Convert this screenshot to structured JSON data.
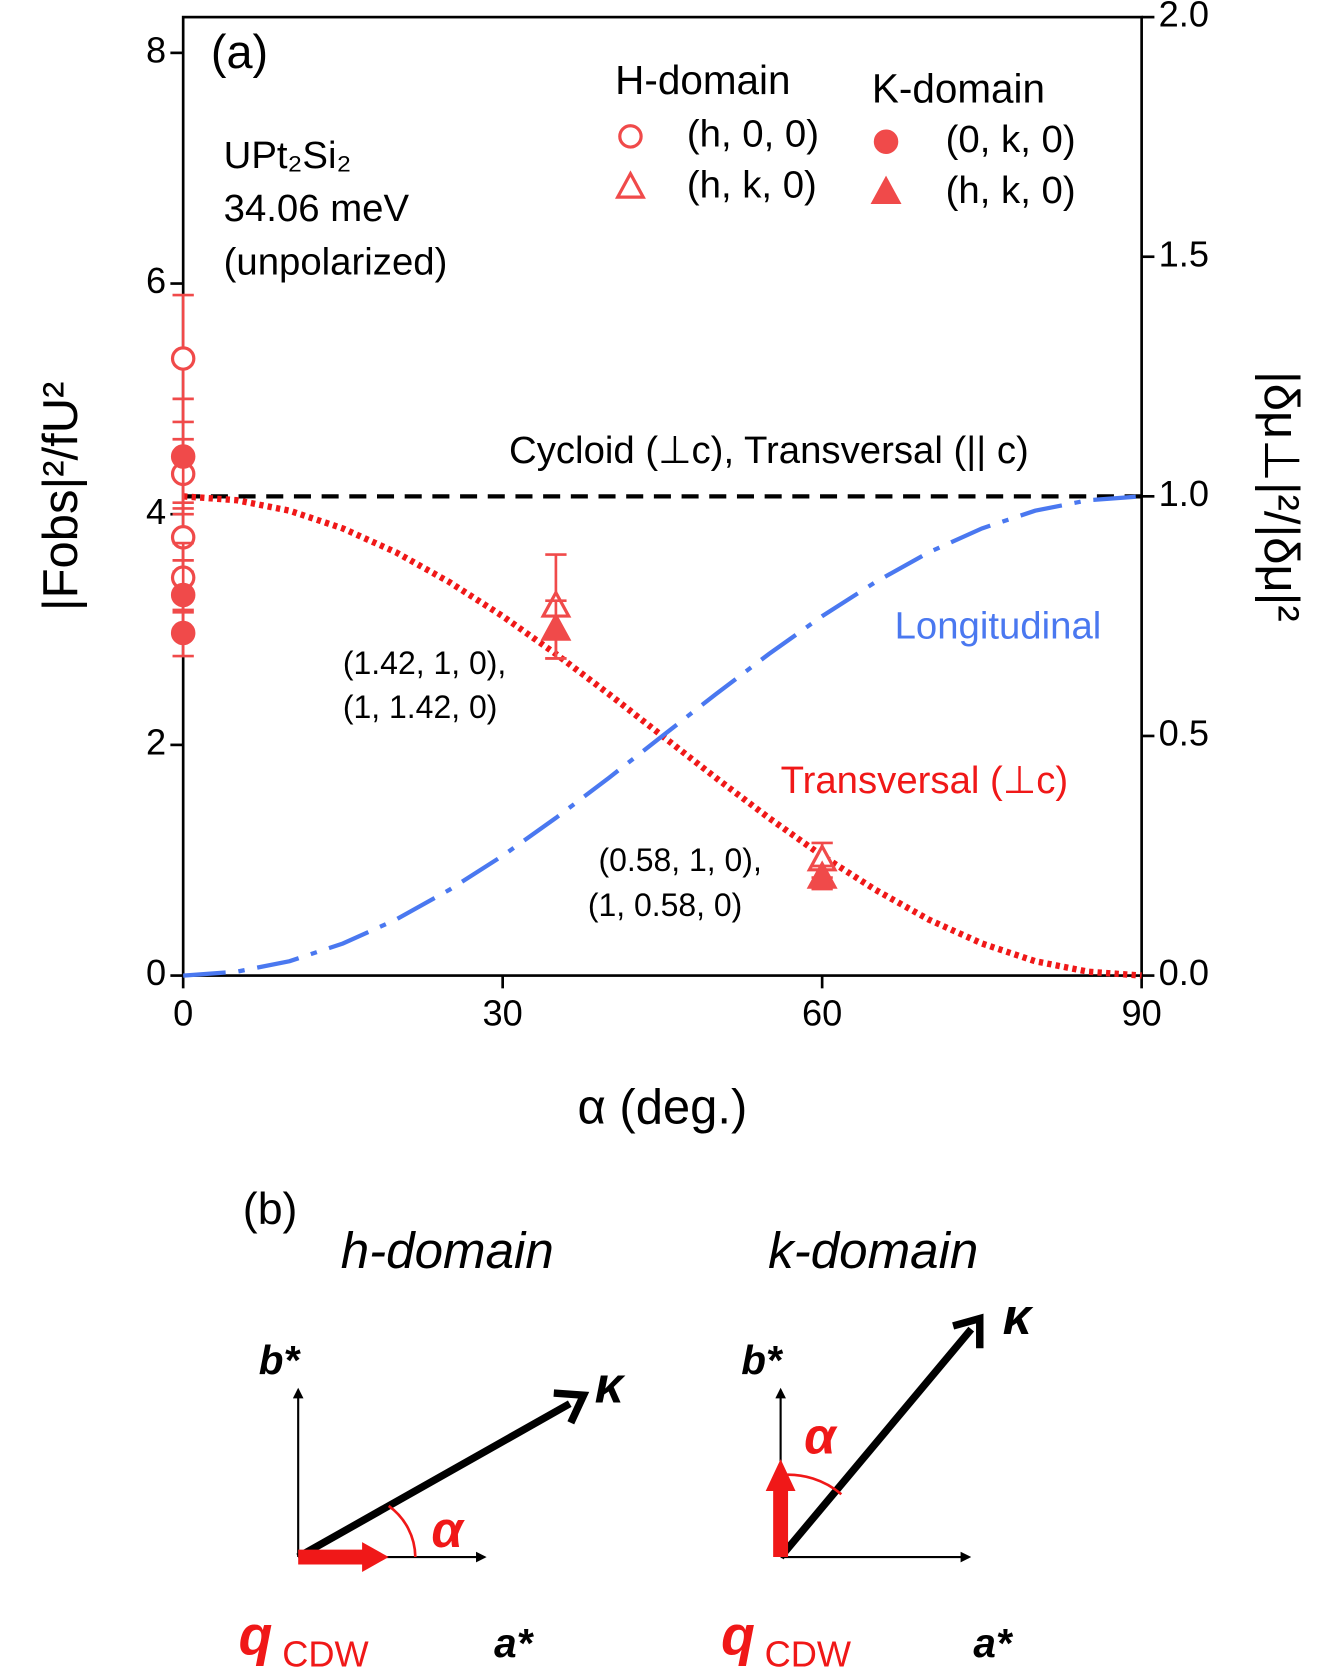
{
  "chart_data": {
    "type": "scatter",
    "xlabel": "α (deg.)",
    "ylabel": "|Fobs|²/fU²",
    "y2label": "|δμ⊥|²/|δμ|²",
    "xlim": [
      0,
      90
    ],
    "xticks": [
      0,
      30,
      60,
      90
    ],
    "ylim": [
      0,
      8.31
    ],
    "yticks": [
      0,
      2,
      4,
      6,
      8
    ],
    "y2lim": [
      0,
      2.0
    ],
    "y2ticks": [
      {
        "value": 0,
        "label": "0.0"
      },
      {
        "value": 0.5,
        "label": "0.5"
      },
      {
        "value": 1.0,
        "label": "1.0"
      },
      {
        "value": 1.5,
        "label": "1.5"
      },
      {
        "value": 2.0,
        "label": "2.0"
      }
    ],
    "panel_label": "(a)",
    "legend_titles": [
      "H-domain",
      "K-domain"
    ],
    "annotations": [
      "UPt₂Si₂",
      "34.06 meV",
      "(unpolarized)",
      "(1.42, 1, 0),",
      "(1, 1.42, 0)",
      "(0.58, 1, 0),",
      "(1, 0.58, 0)"
    ],
    "series": [
      {
        "name": "(h, 0, 0)",
        "color": "#f04a4a",
        "marker": "circle",
        "filled": false,
        "x": [
          0,
          0,
          0,
          0
        ],
        "values": [
          5.35,
          4.35,
          3.8,
          3.45
        ],
        "errors": [
          0.55,
          0.3,
          0.3,
          0.3
        ]
      },
      {
        "name": "(h, k, 0)",
        "color": "#f04a4a",
        "marker": "triangle",
        "filled": false,
        "x": [
          35,
          60
        ],
        "values": [
          3.2,
          1.0
        ],
        "errors": [
          0.45,
          0.15
        ]
      },
      {
        "name": "(0, k, 0)",
        "color": "#f04a4a",
        "marker": "circle",
        "filled": true,
        "x": [
          0,
          0,
          0
        ],
        "values": [
          4.5,
          3.3,
          2.97
        ],
        "errors": [
          0.5,
          0.3,
          0.2
        ]
      },
      {
        "name": "(h, k, 0)",
        "color": "#f04a4a",
        "marker": "triangle",
        "filled": true,
        "x": [
          35,
          60
        ],
        "values": [
          3.0,
          0.85
        ],
        "errors": [
          0.25,
          0.1
        ]
      },
      {
        "name": "Cycloid (⊥c), Transversal (|| c)",
        "type": "line",
        "style": "dashed",
        "axis": "y2",
        "color": "#000000",
        "x": [
          0,
          90
        ],
        "values": [
          1.0,
          1.0
        ]
      },
      {
        "name": "Transversal (⊥c)",
        "type": "line",
        "style": "dotted",
        "axis": "y2",
        "color": "#f01818",
        "x": [
          0,
          5,
          10,
          15,
          20,
          25,
          30,
          35,
          40,
          45,
          50,
          55,
          60,
          65,
          70,
          75,
          80,
          85,
          90
        ],
        "values": [
          1,
          0.992,
          0.97,
          0.933,
          0.883,
          0.821,
          0.75,
          0.671,
          0.587,
          0.5,
          0.413,
          0.329,
          0.25,
          0.179,
          0.117,
          0.067,
          0.03,
          0.008,
          0
        ]
      },
      {
        "name": "Longitudinal",
        "type": "line",
        "style": "dashdot",
        "axis": "y2",
        "color": "#4a78f0",
        "x": [
          0,
          5,
          10,
          15,
          20,
          25,
          30,
          35,
          40,
          45,
          50,
          55,
          60,
          65,
          70,
          75,
          80,
          85,
          90
        ],
        "values": [
          0,
          0.008,
          0.03,
          0.067,
          0.117,
          0.179,
          0.25,
          0.329,
          0.413,
          0.5,
          0.587,
          0.671,
          0.75,
          0.821,
          0.883,
          0.933,
          0.97,
          0.992,
          1
        ]
      }
    ]
  },
  "panel_b": {
    "label": "(b)",
    "h_domain": "h-domain",
    "k_domain": "k-domain",
    "b_axis": "b*",
    "a_axis": "a*",
    "kappa": "κ",
    "angle": "α",
    "q": "q",
    "q_sub": "CDW"
  }
}
